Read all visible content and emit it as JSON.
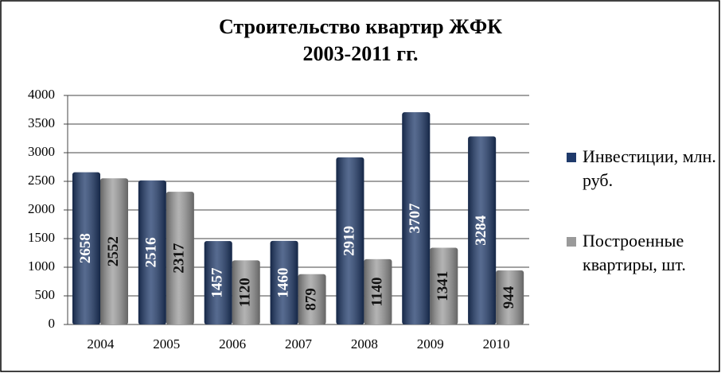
{
  "chart_data": {
    "type": "bar",
    "title": "Строительство квартир ЖФК",
    "subtitle": "2003-2011 гг.",
    "categories": [
      "2004",
      "2005",
      "2006",
      "2007",
      "2008",
      "2009",
      "2010"
    ],
    "series": [
      {
        "name": "Инвестиции, млн. руб.",
        "color": "#1f3a6b",
        "values": [
          2658,
          2516,
          1457,
          1460,
          2919,
          3707,
          3284
        ]
      },
      {
        "name": "Построенные квартиры, шт.",
        "color": "#9a9a9a",
        "values": [
          2552,
          2317,
          1120,
          879,
          1140,
          1341,
          944
        ]
      }
    ],
    "ylim": [
      0,
      4000
    ],
    "yticks": [
      0,
      500,
      1000,
      1500,
      2000,
      2500,
      3000,
      3500,
      4000
    ],
    "grid": true,
    "legend": "right"
  }
}
